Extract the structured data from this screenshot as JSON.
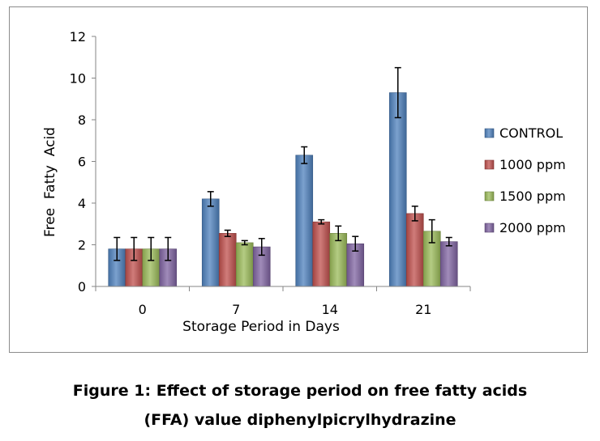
{
  "caption": {
    "line1": "Figure 1: Effect of storage period on free fatty acids",
    "line2": "(FFA) value diphenylpicrylhydrazine"
  },
  "chart_data": {
    "type": "bar",
    "title": "",
    "xlabel": "Storage Period in Days",
    "ylabel": "Free  Fatty  Acid",
    "categories": [
      "0",
      "7",
      "14",
      "21"
    ],
    "ylim": [
      0,
      12
    ],
    "yticks": [
      0,
      2,
      4,
      6,
      8,
      10,
      12
    ],
    "grid": false,
    "legend": "right",
    "error_bars": true,
    "series": [
      {
        "name": "CONTROL",
        "color": "#4f81bd",
        "values": [
          1.8,
          4.2,
          6.3,
          9.3
        ],
        "errors": [
          0.55,
          0.35,
          0.4,
          1.2
        ]
      },
      {
        "name": "1000 ppm",
        "color": "#c0504d",
        "values": [
          1.8,
          2.55,
          3.1,
          3.5
        ],
        "errors": [
          0.55,
          0.15,
          0.1,
          0.35
        ]
      },
      {
        "name": "1500 ppm",
        "color": "#9bbb59",
        "values": [
          1.8,
          2.1,
          2.55,
          2.65
        ],
        "errors": [
          0.55,
          0.1,
          0.35,
          0.55
        ]
      },
      {
        "name": "2000 ppm",
        "color": "#8064a2",
        "values": [
          1.8,
          1.9,
          2.05,
          2.15
        ],
        "errors": [
          0.55,
          0.4,
          0.35,
          0.2
        ]
      }
    ]
  }
}
